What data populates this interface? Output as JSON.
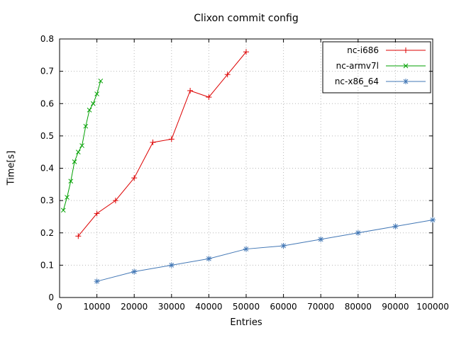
{
  "chart_data": {
    "type": "line",
    "title": "Clixon commit config",
    "xlabel": "Entries",
    "ylabel": "Time[s]",
    "xlim": [
      0,
      100000
    ],
    "ylim": [
      0,
      0.8
    ],
    "xticks": [
      0,
      10000,
      20000,
      30000,
      40000,
      50000,
      60000,
      70000,
      80000,
      90000,
      100000
    ],
    "yticks": [
      0,
      0.1,
      0.2,
      0.3,
      0.4,
      0.5,
      0.6,
      0.7,
      0.8
    ],
    "grid": true,
    "legend_position": "top-right",
    "legend_box": true,
    "colors": {
      "grid": "#b8b8b8",
      "axis": "#000000",
      "text": "#000000"
    },
    "series": [
      {
        "name": "nc-i686",
        "color": "#dd0000",
        "marker": "plus",
        "points": [
          [
            5000,
            0.19
          ],
          [
            10000,
            0.26
          ],
          [
            15000,
            0.3
          ],
          [
            20000,
            0.37
          ],
          [
            25000,
            0.48
          ],
          [
            30000,
            0.49
          ],
          [
            35000,
            0.64
          ],
          [
            40000,
            0.62
          ],
          [
            45000,
            0.69
          ],
          [
            50000,
            0.76
          ]
        ]
      },
      {
        "name": "nc-armv7l",
        "color": "#00a000",
        "marker": "cross",
        "points": [
          [
            1000,
            0.27
          ],
          [
            2000,
            0.31
          ],
          [
            3000,
            0.36
          ],
          [
            4000,
            0.42
          ],
          [
            5000,
            0.45
          ],
          [
            6000,
            0.47
          ],
          [
            7000,
            0.53
          ],
          [
            8000,
            0.58
          ],
          [
            9000,
            0.6
          ],
          [
            10000,
            0.63
          ],
          [
            11000,
            0.67
          ]
        ]
      },
      {
        "name": "nc-x86_64",
        "color": "#4277b5",
        "marker": "star",
        "points": [
          [
            10000,
            0.05
          ],
          [
            20000,
            0.08
          ],
          [
            30000,
            0.1
          ],
          [
            40000,
            0.12
          ],
          [
            50000,
            0.15
          ],
          [
            60000,
            0.16
          ],
          [
            70000,
            0.18
          ],
          [
            80000,
            0.2
          ],
          [
            90000,
            0.22
          ],
          [
            100000,
            0.24
          ]
        ]
      }
    ]
  }
}
